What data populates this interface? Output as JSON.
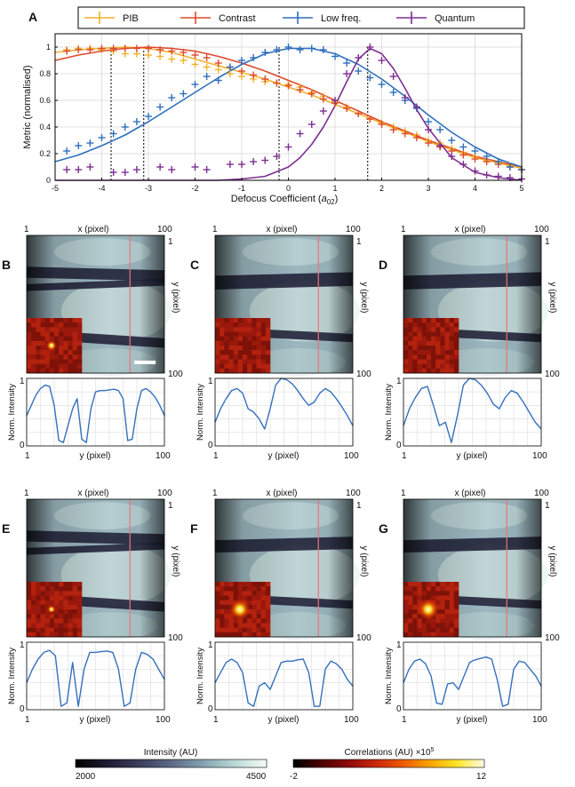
{
  "chart_data": {
    "panel_a": {
      "type": "line",
      "panel_label": "A",
      "xlabel": "Defocus Coefficient (",
      "xlabel_sym": "a",
      "xlabel_sub": "02",
      "xlabel_end": ")",
      "ylabel": "Metric (normalised)",
      "xlim": [
        -5,
        5
      ],
      "ylim": [
        0,
        1.1
      ],
      "x_ticks": [
        -5,
        -4,
        -3,
        -2,
        -1,
        0,
        1,
        2,
        3,
        4,
        5
      ],
      "y_ticks": [
        0,
        0.2,
        0.4,
        0.6,
        0.8,
        1
      ],
      "y_tick_labels": [
        "0",
        "0.2",
        "0.4",
        "0.6",
        "0.8",
        "1"
      ],
      "grid": true,
      "legend_position": "top",
      "series": [
        {
          "name": "PIB",
          "color": "#f2b12b",
          "fit_x": [
            -5,
            -4.5,
            -4,
            -3.5,
            -3,
            -2.5,
            -2,
            -1.5,
            -1,
            -0.5,
            0,
            0.5,
            1,
            1.5,
            2,
            2.5,
            3,
            3.5,
            4,
            4.5,
            5
          ],
          "fit_y": [
            0.96,
            0.98,
            0.99,
            1.0,
            0.99,
            0.96,
            0.91,
            0.86,
            0.81,
            0.76,
            0.7,
            0.64,
            0.57,
            0.5,
            0.43,
            0.36,
            0.29,
            0.23,
            0.17,
            0.13,
            0.09
          ],
          "marker_x": [
            -4.75,
            -4.5,
            -4.25,
            -4,
            -3.75,
            -3.5,
            -3.25,
            -3,
            -2.75,
            -2.5,
            -2.25,
            -2,
            -1.75,
            -1.5,
            -1.25,
            -1,
            -0.75,
            -0.5,
            -0.25,
            0,
            0.25,
            0.5,
            0.75,
            1,
            1.25,
            1.5,
            1.75,
            2,
            2.25,
            2.5,
            2.75,
            3,
            3.25,
            3.5,
            3.75,
            4,
            4.25,
            4.5,
            4.75,
            5
          ],
          "marker_y": [
            0.98,
            0.99,
            0.99,
            0.98,
            0.97,
            0.95,
            0.95,
            0.94,
            0.93,
            0.91,
            0.9,
            0.87,
            0.85,
            0.83,
            0.8,
            0.78,
            0.76,
            0.74,
            0.73,
            0.72,
            0.7,
            0.66,
            0.63,
            0.59,
            0.55,
            0.5,
            0.46,
            0.43,
            0.4,
            0.37,
            0.34,
            0.3,
            0.28,
            0.24,
            0.21,
            0.18,
            0.15,
            0.13,
            0.11,
            0.08
          ],
          "peak_x": -3.8
        },
        {
          "name": "Contrast",
          "color": "#de4a2c",
          "fit_x": [
            -5,
            -4.5,
            -4,
            -3.5,
            -3,
            -2.5,
            -2,
            -1.5,
            -1,
            -0.5,
            0,
            0.5,
            1,
            1.5,
            2,
            2.5,
            3,
            3.5,
            4,
            4.5,
            5
          ],
          "fit_y": [
            0.9,
            0.94,
            0.97,
            0.99,
            1.0,
            0.99,
            0.97,
            0.93,
            0.88,
            0.82,
            0.75,
            0.68,
            0.6,
            0.52,
            0.44,
            0.37,
            0.3,
            0.24,
            0.18,
            0.14,
            0.1
          ],
          "marker_x": [
            -4.75,
            -4.5,
            -4.25,
            -4,
            -3.75,
            -3.5,
            -3.25,
            -3,
            -2.75,
            -2.5,
            -2.25,
            -2,
            -1.75,
            -1.5,
            -1.25,
            -1,
            -0.75,
            -0.5,
            -0.25,
            0,
            0.25,
            0.5,
            0.75,
            1,
            1.25,
            1.5,
            1.75,
            2,
            2.25,
            2.5,
            2.75,
            3,
            3.25,
            3.5,
            3.75,
            4,
            4.25,
            4.5,
            4.75,
            5
          ],
          "marker_y": [
            0.97,
            0.98,
            0.98,
            0.99,
            0.99,
            0.99,
            0.99,
            0.99,
            0.98,
            0.97,
            0.96,
            0.94,
            0.92,
            0.88,
            0.85,
            0.82,
            0.79,
            0.76,
            0.73,
            0.71,
            0.68,
            0.65,
            0.61,
            0.58,
            0.54,
            0.5,
            0.46,
            0.42,
            0.38,
            0.35,
            0.32,
            0.28,
            0.25,
            0.22,
            0.19,
            0.16,
            0.14,
            0.12,
            0.1,
            0.08
          ],
          "peak_x": -3.1
        },
        {
          "name": "Low freq.",
          "color": "#2e6fbd",
          "fit_x": [
            -5,
            -4.5,
            -4,
            -3.5,
            -3,
            -2.5,
            -2,
            -1.5,
            -1,
            -0.5,
            0,
            0.5,
            1,
            1.5,
            2,
            2.5,
            3,
            3.5,
            4,
            4.5,
            5
          ],
          "fit_y": [
            0.14,
            0.19,
            0.26,
            0.34,
            0.44,
            0.55,
            0.66,
            0.77,
            0.87,
            0.95,
            0.99,
            0.99,
            0.95,
            0.87,
            0.76,
            0.63,
            0.49,
            0.36,
            0.25,
            0.16,
            0.1
          ],
          "marker_x": [
            -4.75,
            -4.5,
            -4.25,
            -4,
            -3.75,
            -3.5,
            -3.25,
            -3,
            -2.75,
            -2.5,
            -2.25,
            -2,
            -1.75,
            -1.5,
            -1.25,
            -1,
            -0.75,
            -0.5,
            -0.25,
            0,
            0.25,
            0.5,
            0.75,
            1,
            1.25,
            1.5,
            1.75,
            2,
            2.25,
            2.5,
            2.75,
            3,
            3.25,
            3.5,
            3.75,
            4,
            4.25,
            4.5,
            4.75,
            5
          ],
          "marker_y": [
            0.22,
            0.26,
            0.28,
            0.32,
            0.35,
            0.4,
            0.44,
            0.48,
            0.55,
            0.62,
            0.65,
            0.72,
            0.78,
            0.75,
            0.85,
            0.9,
            0.92,
            0.96,
            0.98,
            1.0,
            0.98,
            0.99,
            0.98,
            0.93,
            0.88,
            0.82,
            0.77,
            0.72,
            0.66,
            0.6,
            0.54,
            0.44,
            0.38,
            0.3,
            0.25,
            0.22,
            0.18,
            0.14,
            0.1,
            0.08
          ],
          "peak_x": -0.2
        },
        {
          "name": "Quantum",
          "color": "#7d2e92",
          "fit_x": [
            -5,
            -4,
            -3,
            -2,
            -1.5,
            -1,
            -0.5,
            0,
            0.25,
            0.5,
            0.75,
            1,
            1.25,
            1.5,
            1.75,
            2,
            2.25,
            2.5,
            2.75,
            3,
            3.5,
            4,
            4.5,
            5
          ],
          "fit_y": [
            0.0,
            0.0,
            0.0,
            0.0,
            0.0,
            0.01,
            0.03,
            0.1,
            0.17,
            0.27,
            0.4,
            0.56,
            0.74,
            0.91,
            0.99,
            0.95,
            0.84,
            0.69,
            0.53,
            0.39,
            0.17,
            0.06,
            0.02,
            0.0
          ],
          "marker_x": [
            -4.75,
            -4.5,
            -4.25,
            -3.75,
            -3.5,
            -3.25,
            -2.75,
            -2.5,
            -2,
            -1.75,
            -1.25,
            -1,
            -0.75,
            -0.5,
            -0.25,
            0,
            0.25,
            0.5,
            0.75,
            1,
            1.25,
            1.5,
            1.75,
            2,
            2.25,
            2.5,
            2.75,
            3,
            3.25,
            3.5,
            3.75,
            4,
            4.25,
            4.5,
            4.75,
            5
          ],
          "marker_y": [
            0.08,
            0.08,
            0.1,
            0.06,
            0.06,
            0.08,
            0.1,
            0.08,
            0.1,
            0.08,
            0.12,
            0.12,
            0.14,
            0.15,
            0.18,
            0.25,
            0.35,
            0.42,
            0.52,
            0.6,
            0.8,
            0.92,
            1.0,
            0.9,
            0.78,
            0.62,
            0.55,
            0.38,
            0.26,
            0.18,
            0.12,
            0.07,
            0.04,
            0.03,
            0.02,
            0.01
          ],
          "peak_x": 1.7
        }
      ]
    },
    "image_panels": [
      {
        "label": "B",
        "xlabel": "x (pixel)",
        "ylabel": "y (pixel)",
        "x_min": "1",
        "x_max": "100",
        "y_min": "1",
        "y_max": "100",
        "profile_ylabel": "Norm. Intensity",
        "profile_xlabel": "y (pixel)",
        "profile_ymin": "0",
        "profile_ymax": "1",
        "profile_xmin": "1",
        "profile_xmax": "100",
        "profile": [
          0.45,
          0.6,
          0.75,
          0.85,
          0.9,
          0.88,
          0.6,
          0.08,
          0.05,
          0.3,
          0.55,
          0.7,
          0.1,
          0.05,
          0.55,
          0.8,
          0.82,
          0.82,
          0.83,
          0.84,
          0.82,
          0.7,
          0.08,
          0.1,
          0.55,
          0.82,
          0.85,
          0.8,
          0.72,
          0.6,
          0.45
        ],
        "scale_bar": true,
        "correlation_peak": 0.25
      },
      {
        "label": "C",
        "xlabel": "x (pixel)",
        "ylabel": "y (pixel)",
        "x_min": "1",
        "x_max": "100",
        "y_min": "1",
        "y_max": "100",
        "profile_ylabel": "Norm. Intensity",
        "profile_xlabel": "y (pixel)",
        "profile_ymin": "0",
        "profile_ymax": "1",
        "profile_xmin": "1",
        "profile_xmax": "100",
        "profile": [
          0.35,
          0.55,
          0.7,
          0.82,
          0.85,
          0.78,
          0.55,
          0.5,
          0.4,
          0.25,
          0.55,
          0.9,
          1.0,
          0.98,
          0.92,
          0.82,
          0.7,
          0.6,
          0.65,
          0.78,
          0.85,
          0.8,
          0.7,
          0.58,
          0.45,
          0.3
        ],
        "scale_bar": false,
        "correlation_peak": 0.0
      },
      {
        "label": "D",
        "xlabel": "x (pixel)",
        "ylabel": "y (pixel)",
        "x_min": "1",
        "x_max": "100",
        "y_min": "1",
        "y_max": "100",
        "profile_ylabel": "Norm. Intensity",
        "profile_xlabel": "y (pixel)",
        "profile_ymin": "0",
        "profile_ymax": "1",
        "profile_xmin": "1",
        "profile_xmax": "100",
        "profile": [
          0.3,
          0.55,
          0.72,
          0.85,
          0.88,
          0.6,
          0.3,
          0.35,
          0.05,
          0.45,
          0.9,
          1.0,
          0.98,
          0.9,
          0.78,
          0.62,
          0.55,
          0.72,
          0.82,
          0.78,
          0.65,
          0.5,
          0.35,
          0.25
        ],
        "scale_bar": false,
        "correlation_peak": 0.0
      },
      {
        "label": "E",
        "xlabel": "x (pixel)",
        "ylabel": "y (pixel)",
        "x_min": "1",
        "x_max": "100",
        "y_min": "1",
        "y_max": "100",
        "profile_ylabel": "Norm. Intensity",
        "profile_xlabel": "y (pixel)",
        "profile_ymin": "0",
        "profile_ymax": "1",
        "profile_xmin": "1",
        "profile_xmax": "100",
        "profile": [
          0.4,
          0.6,
          0.75,
          0.85,
          0.88,
          0.8,
          0.05,
          0.1,
          0.7,
          0.05,
          0.6,
          0.85,
          0.85,
          0.86,
          0.87,
          0.85,
          0.6,
          0.05,
          0.1,
          0.6,
          0.85,
          0.82,
          0.75,
          0.6,
          0.45
        ],
        "scale_bar": false,
        "correlation_peak": 0.1
      },
      {
        "label": "F",
        "xlabel": "x (pixel)",
        "ylabel": "y (pixel)",
        "x_min": "1",
        "x_max": "100",
        "y_min": "1",
        "y_max": "100",
        "profile_ylabel": "Norm. Intensity",
        "profile_xlabel": "y (pixel)",
        "profile_ymin": "0",
        "profile_ymax": "1",
        "profile_xmin": "1",
        "profile_xmax": "100",
        "profile": [
          0.4,
          0.55,
          0.7,
          0.75,
          0.7,
          0.55,
          0.1,
          0.05,
          0.35,
          0.4,
          0.3,
          0.5,
          0.7,
          0.72,
          0.72,
          0.74,
          0.75,
          0.55,
          0.05,
          0.05,
          0.6,
          0.72,
          0.68,
          0.6,
          0.45,
          0.35
        ],
        "scale_bar": false,
        "correlation_peak": 1.0
      },
      {
        "label": "G",
        "xlabel": "x (pixel)",
        "ylabel": "y (pixel)",
        "x_min": "1",
        "x_max": "100",
        "y_min": "1",
        "y_max": "100",
        "profile_ylabel": "Norm. Intensity",
        "profile_xlabel": "y (pixel)",
        "profile_ymin": "0",
        "profile_ymax": "1",
        "profile_xmin": "1",
        "profile_xmax": "100",
        "profile": [
          0.4,
          0.6,
          0.72,
          0.75,
          0.68,
          0.5,
          0.1,
          0.08,
          0.38,
          0.4,
          0.3,
          0.5,
          0.7,
          0.74,
          0.76,
          0.78,
          0.75,
          0.45,
          0.05,
          0.08,
          0.6,
          0.72,
          0.7,
          0.6,
          0.5,
          0.35
        ],
        "scale_bar": false,
        "correlation_peak": 1.0
      }
    ],
    "colorbars": [
      {
        "title": "Intensity (AU)",
        "min": "2000",
        "max": "4500",
        "colors": [
          "#000000",
          "#1c1c32",
          "#3a3d5c",
          "#5c6a86",
          "#84a2b0",
          "#b9d9d8",
          "#f6fbf7"
        ]
      },
      {
        "title": "Correlations (AU)",
        "title_suffix": "×10",
        "title_exp": "5",
        "min": "-2",
        "max": "12",
        "colors": [
          "#000000",
          "#4a0000",
          "#8c0a0a",
          "#c8260a",
          "#ec5a00",
          "#f8a400",
          "#fde62a",
          "#fffbe6"
        ]
      }
    ]
  }
}
